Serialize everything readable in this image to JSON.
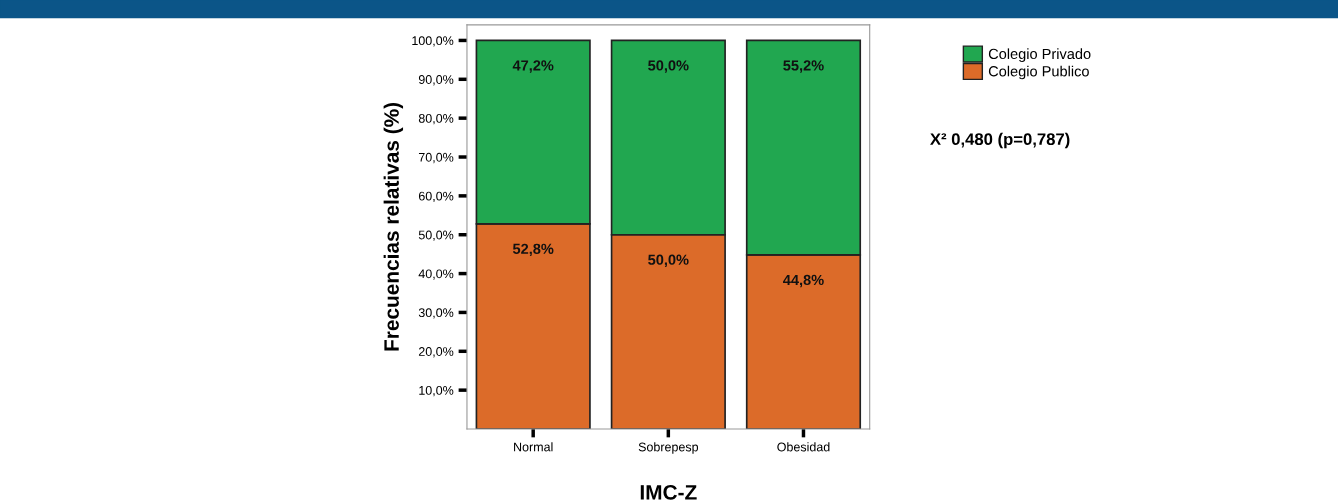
{
  "chart_data": {
    "type": "bar",
    "stacked": true,
    "xlabel": "IMC-Z",
    "ylabel": "Frecuencias relativas (%)",
    "categories": [
      "Normal",
      "Sobrepesp",
      "Obesidad"
    ],
    "series": [
      {
        "name": "Colegio Publico",
        "color": "#dc6b29",
        "values": [
          52.8,
          50.0,
          44.8
        ],
        "value_labels": [
          "52,8%",
          "50,0%",
          "44,8%"
        ]
      },
      {
        "name": "Colegio Privado",
        "color": "#21a750",
        "values": [
          47.2,
          50.0,
          55.2
        ],
        "value_labels": [
          "47,2%",
          "50,0%",
          "55,2%"
        ]
      }
    ],
    "ylim": [
      0,
      104
    ],
    "yticks": [
      {
        "value": 10,
        "label": "10,0%"
      },
      {
        "value": 20,
        "label": "20,0%"
      },
      {
        "value": 30,
        "label": "30,0%"
      },
      {
        "value": 40,
        "label": "40,0%"
      },
      {
        "value": 50,
        "label": "50,0%"
      },
      {
        "value": 60,
        "label": "60,0%"
      },
      {
        "value": 70,
        "label": "70,0%"
      },
      {
        "value": 80,
        "label": "80,0%"
      },
      {
        "value": 90,
        "label": "90,0%"
      },
      {
        "value": 100,
        "label": "100,0%"
      }
    ],
    "legend": "right",
    "grid": false,
    "annotations": [
      "X² 0,480 (p=0,787)"
    ]
  }
}
